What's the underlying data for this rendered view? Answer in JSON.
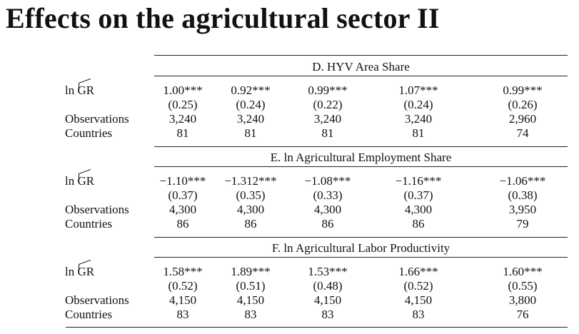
{
  "title": "Effects on the agricultural sector II",
  "row_labels": {
    "coef_prefix": "ln ",
    "coef_var": "GR",
    "observations": "Observations",
    "countries": "Countries"
  },
  "panels": [
    {
      "title": "D. HYV Area Share",
      "coef": [
        "1.00***",
        "0.92***",
        "0.99***",
        "1.07***",
        "0.99***"
      ],
      "se": [
        "(0.25)",
        "(0.24)",
        "(0.22)",
        "(0.24)",
        "(0.26)"
      ],
      "obs": [
        "3,240",
        "3,240",
        "3,240",
        "3,240",
        "2,960"
      ],
      "countries": [
        "81",
        "81",
        "81",
        "81",
        "74"
      ]
    },
    {
      "title": "E. ln Agricultural Employment Share",
      "coef": [
        "−1.10***",
        "−1.312***",
        "−1.08***",
        "−1.16***",
        "−1.06***"
      ],
      "se": [
        "(0.37)",
        "(0.35)",
        "(0.33)",
        "(0.37)",
        "(0.38)"
      ],
      "obs": [
        "4,300",
        "4,300",
        "4,300",
        "4,300",
        "3,950"
      ],
      "countries": [
        "86",
        "86",
        "86",
        "86",
        "79"
      ]
    },
    {
      "title": "F. ln Agricultural Labor Productivity",
      "coef": [
        "1.58***",
        "1.89***",
        "1.53***",
        "1.66***",
        "1.60***"
      ],
      "se": [
        "(0.52)",
        "(0.51)",
        "(0.48)",
        "(0.52)",
        "(0.55)"
      ],
      "obs": [
        "4,150",
        "4,150",
        "4,150",
        "4,150",
        "3,800"
      ],
      "countries": [
        "83",
        "83",
        "83",
        "83",
        "76"
      ]
    }
  ]
}
